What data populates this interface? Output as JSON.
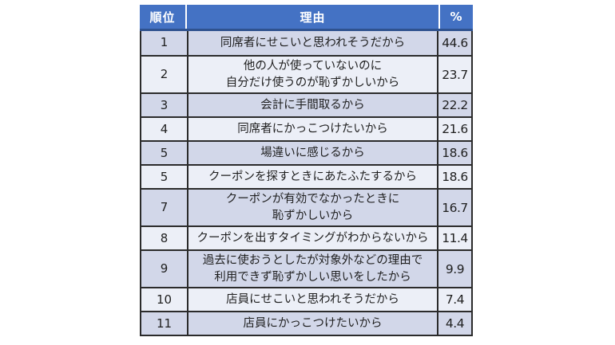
{
  "colors": {
    "header_bg": "#4472C4",
    "header_text": "#FFFFFF",
    "header_rule": "#2F528F",
    "band_dark": "#D2D7E9",
    "band_light": "#ECEFF7",
    "grid": "#2B2B2B",
    "text": "#1F1F1F"
  },
  "chart_data": {
    "type": "table",
    "columns": [
      "順位",
      "理由",
      "%"
    ],
    "rows": [
      {
        "rank": "1",
        "reason": "同席者にせこいと思われそうだから",
        "pct": "44.6"
      },
      {
        "rank": "2",
        "reason": "他の人が使っていないのに\n自分だけ使うのが恥ずかしいから",
        "pct": "23.7"
      },
      {
        "rank": "3",
        "reason": "会計に手間取るから",
        "pct": "22.2"
      },
      {
        "rank": "4",
        "reason": "同席者にかっこつけたいから",
        "pct": "21.6"
      },
      {
        "rank": "5",
        "reason": "場違いに感じるから",
        "pct": "18.6"
      },
      {
        "rank": "5",
        "reason": "クーポンを探すときにあたふたするから",
        "pct": "18.6"
      },
      {
        "rank": "7",
        "reason": "クーポンが有効でなかったときに\n恥ずかしいから",
        "pct": "16.7"
      },
      {
        "rank": "8",
        "reason": "クーポンを出すタイミングがわからないから",
        "pct": "11.4"
      },
      {
        "rank": "9",
        "reason": "過去に使おうとしたが対象外などの理由で\n利用できず恥ずかしい思いをしたから",
        "pct": "9.9"
      },
      {
        "rank": "10",
        "reason": "店員にせこいと思われそうだから",
        "pct": "7.4"
      },
      {
        "rank": "11",
        "reason": "店員にかっこつけたいから",
        "pct": "4.4"
      }
    ]
  }
}
